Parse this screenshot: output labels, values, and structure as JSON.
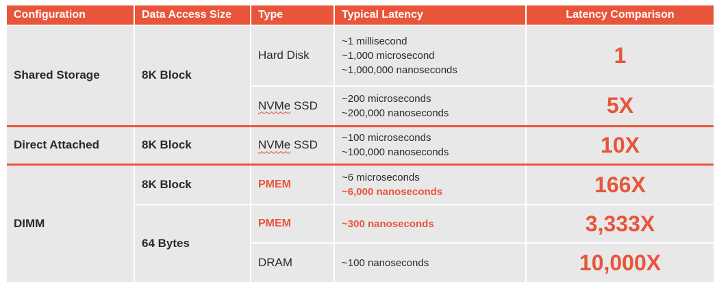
{
  "headers": {
    "configuration": "Configuration",
    "data_access_size": "Data Access Size",
    "type": "Type",
    "typical_latency": "Typical Latency",
    "latency_comparison": "Latency Comparison"
  },
  "configs": {
    "shared_storage": "Shared Storage",
    "direct_attached": "Direct Attached",
    "dimm": "DIMM"
  },
  "sizes": {
    "shared_storage": "8K Block",
    "direct_attached": "8K Block",
    "dimm_8k": "8K Block",
    "dimm_64": "64 Bytes"
  },
  "rows": [
    {
      "type": "Hard Disk",
      "latency": [
        "~1 millisecond",
        "~1,000 microsecond",
        "~1,000,000 nanoseconds"
      ],
      "comparison": "1"
    },
    {
      "type_prefix": "NVMe",
      "type_suffix": " SSD",
      "latency": [
        "~200 microseconds",
        "~200,000 nanoseconds"
      ],
      "comparison": "5X"
    },
    {
      "type_prefix": "NVMe",
      "type_suffix": " SSD",
      "latency": [
        "~100 microseconds",
        "~100,000 nanoseconds"
      ],
      "comparison": "10X"
    },
    {
      "type": "PMEM",
      "latency": [
        "~6 microseconds",
        "~6,000 nanoseconds"
      ],
      "comparison": "166X"
    },
    {
      "type": "PMEM",
      "latency": [
        "~300 nanoseconds"
      ],
      "comparison": "3,333X"
    },
    {
      "type": "DRAM",
      "latency": [
        "~100 nanoseconds"
      ],
      "comparison": "10,000X"
    }
  ],
  "colors": {
    "accent": "#e8553a",
    "cell_background": "#e8e8e8",
    "text": "#2a2a2a"
  }
}
